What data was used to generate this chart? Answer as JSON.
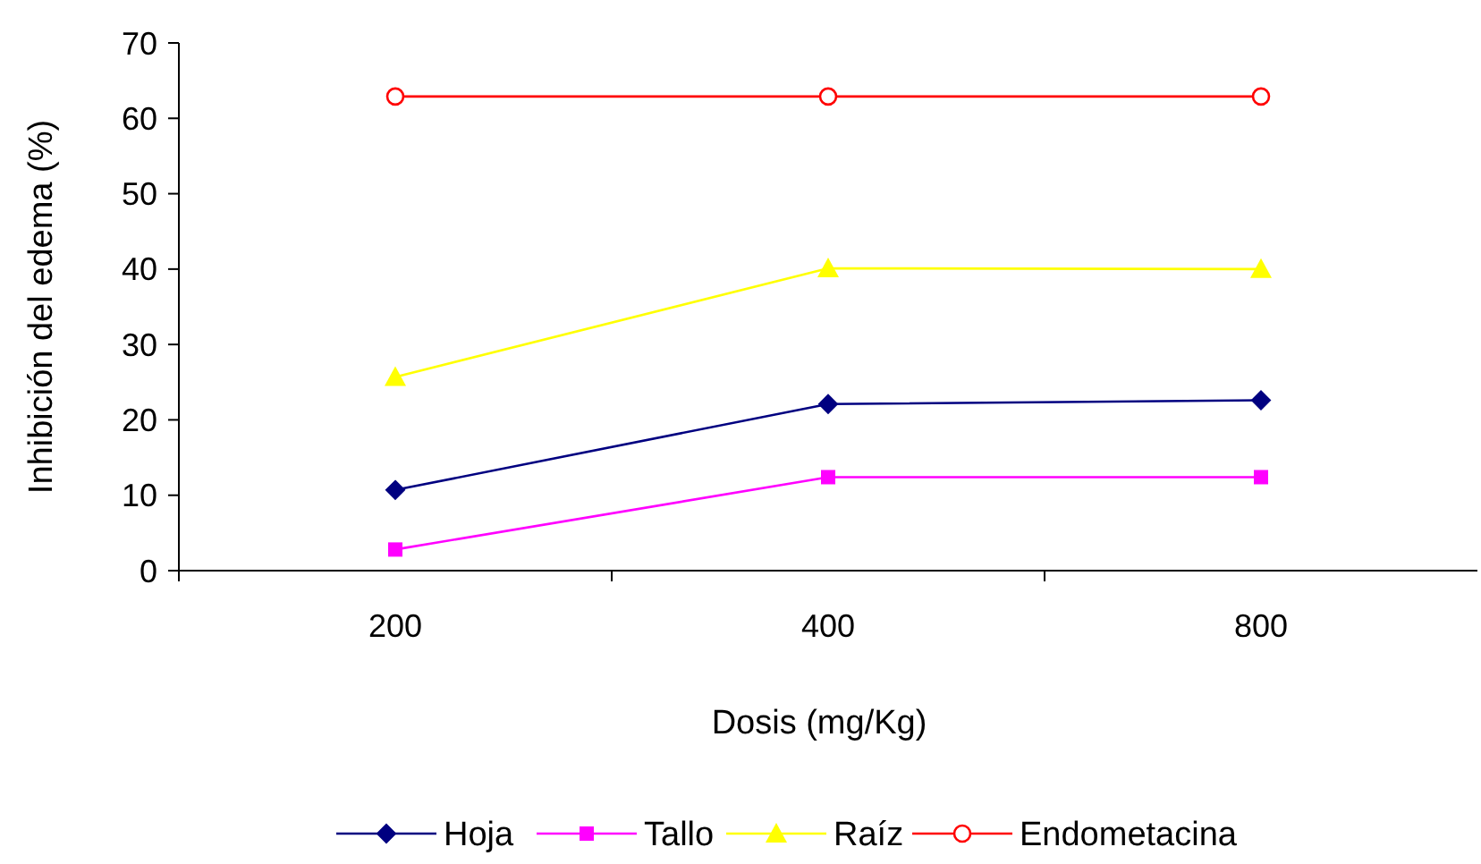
{
  "chart_data": {
    "type": "line",
    "xlabel": "Dosis (mg/Kg)",
    "ylabel": "Inhibición del edema (%)",
    "categories": [
      "200",
      "400",
      "800"
    ],
    "ylim": [
      0,
      70
    ],
    "yticks": [
      0,
      10,
      20,
      30,
      40,
      50,
      60,
      70
    ],
    "grid": false,
    "legend": "bottom",
    "series": [
      {
        "name": "Hoja",
        "color": "#000080",
        "marker": "diamond",
        "values": [
          10.7,
          22.1,
          22.6
        ]
      },
      {
        "name": "Tallo",
        "color": "#ff00ff",
        "marker": "square",
        "values": [
          2.8,
          12.4,
          12.4
        ]
      },
      {
        "name": "Raíz",
        "color": "#ffff00",
        "marker": "triangle",
        "values": [
          25.7,
          40.1,
          40.0
        ]
      },
      {
        "name": "Endometacina",
        "color": "#ff0000",
        "marker": "circle",
        "values": [
          62.9,
          62.9,
          62.9
        ]
      }
    ]
  }
}
